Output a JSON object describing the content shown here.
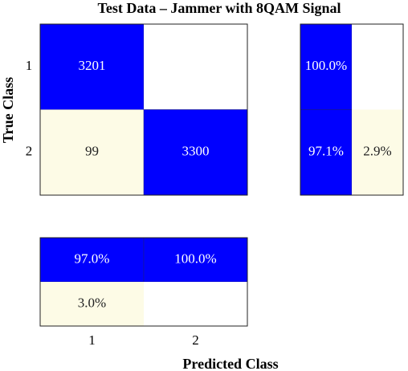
{
  "chart_data": {
    "type": "confusion_matrix",
    "title": "Test Data – Jammer with 8QAM Signal",
    "xlabel": "Predicted Class",
    "ylabel": "True Class",
    "classes": [
      "1",
      "2"
    ],
    "matrix": [
      [
        3201,
        null
      ],
      [
        99,
        3300
      ]
    ],
    "row_summary": {
      "values": [
        [
          100.0,
          null
        ],
        [
          97.1,
          2.9
        ]
      ],
      "value_labels": [
        [
          "100.0%",
          null
        ],
        [
          "97.1%",
          "2.9%"
        ]
      ]
    },
    "column_summary": {
      "values": [
        [
          97.0,
          100.0
        ],
        [
          3.0,
          null
        ]
      ],
      "value_labels": [
        [
          "97.0%",
          "100.0%"
        ],
        [
          "3.0%",
          null
        ]
      ]
    },
    "colors": {
      "correct": "#0000ff",
      "incorrect": "#fdfbe6",
      "empty": "#ffffff"
    }
  }
}
